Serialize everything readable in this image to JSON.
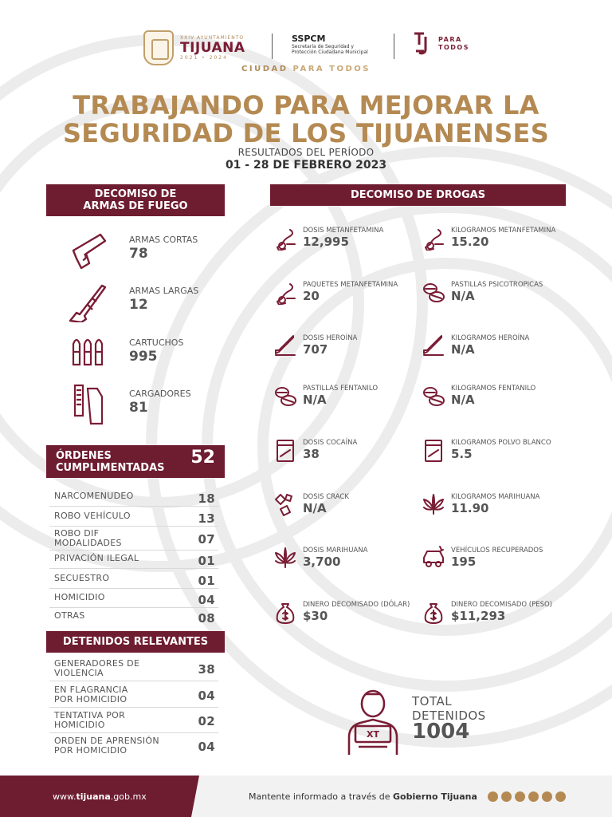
{
  "header": {
    "municipio_small": "XXIV AYUNTAMIENTO",
    "municipio_name": "TIJUANA",
    "municipio_years": "2021 • 2024",
    "sspcm_title": "SSPCM",
    "sspcm_line1": "Secretaría de Seguridad y",
    "sspcm_line2": "Protección Ciudadana Municipal",
    "tj_para": "PARA",
    "tj_todos": "TODOS",
    "ciudad": "CIUDAD",
    "para_todos": "PARA TODOS"
  },
  "title_line1": "TRABAJANDO PARA MEJORAR LA",
  "title_line2": "SEGURIDAD DE LOS TIJUANENSES",
  "subtitle": "RESULTADOS DEL PERÍODO",
  "period": "01 - 28 DE FEBRERO 2023",
  "armas": {
    "banner_line1": "DECOMISO DE",
    "banner_line2": "ARMAS DE FUEGO",
    "items": [
      {
        "label": "ARMAS CORTAS",
        "value": "78",
        "icon": "pistol-icon"
      },
      {
        "label": "ARMAS LARGAS",
        "value": "12",
        "icon": "rifle-icon"
      },
      {
        "label": "CARTUCHOS",
        "value": "995",
        "icon": "bullets-icon"
      },
      {
        "label": "CARGADORES",
        "value": "81",
        "icon": "magazine-icon"
      }
    ]
  },
  "drogas": {
    "banner": "DECOMISO DE DROGAS",
    "items": [
      {
        "label": "DOSIS METANFETAMINA",
        "value": "12,995",
        "icon": "pipe-icon"
      },
      {
        "label": "KILOGRAMOS METANFETAMINA",
        "value": "15.20",
        "icon": "pipe-icon"
      },
      {
        "label": "PAQUETES METANFETAMINA",
        "value": "20",
        "icon": "pipe-icon"
      },
      {
        "label": "PASTILLAS PSICOTROPICAS",
        "value": "N/A",
        "icon": "pills-icon"
      },
      {
        "label": "DOSIS HEROÍNA",
        "value": "707",
        "icon": "syringe-icon"
      },
      {
        "label": "KILOGRAMOS HEROÍNA",
        "value": "N/A",
        "icon": "syringe-icon"
      },
      {
        "label": "PASTILLAS FENTANILO",
        "value": "N/A",
        "icon": "pills-icon"
      },
      {
        "label": "KILOGRAMOS FENTANILO",
        "value": "N/A",
        "icon": "pills-icon"
      },
      {
        "label": "DOSIS COCAÍNA",
        "value": "38",
        "icon": "bag-icon"
      },
      {
        "label": "KILOGRAMOS POLVO BLANCO",
        "value": "5.5",
        "icon": "bag-icon"
      },
      {
        "label": "DOSIS CRACK",
        "value": "N/A",
        "icon": "crack-icon"
      },
      {
        "label": "KILOGRAMOS MARIHUANA",
        "value": "11.90",
        "icon": "leaf-icon"
      },
      {
        "label": "DOSIS MARIHUANA",
        "value": "3,700",
        "icon": "leaf-icon"
      },
      {
        "label": "VEHÍCULOS RECUPERADOS",
        "value": "195",
        "icon": "car-icon"
      },
      {
        "label": "DINERO DECOMISADO (DÓLAR)",
        "value": "$30",
        "icon": "money-bag-icon"
      },
      {
        "label": "DINERO DECOMISADO (PESO)",
        "value": "$11,293",
        "icon": "money-bag-icon"
      }
    ]
  },
  "ordenes": {
    "banner_line1": "ÓRDENES",
    "banner_line2": "CUMPLIMENTADAS",
    "count": "52",
    "rows": [
      {
        "l1": "NARCOMENUDEO",
        "l2": "",
        "value": "18"
      },
      {
        "l1": "ROBO VEHÍCULO",
        "l2": "",
        "value": "13"
      },
      {
        "l1": "ROBO DIF",
        "l2": "MODALIDADES",
        "value": "07"
      },
      {
        "l1": "PRIVACIÓN ILEGAL",
        "l2": "",
        "value": "01"
      },
      {
        "l1": "SECUESTRO",
        "l2": "",
        "value": "01"
      },
      {
        "l1": "HOMICIDIO",
        "l2": "",
        "value": "04"
      },
      {
        "l1": "OTRAS",
        "l2": "",
        "value": "08"
      }
    ]
  },
  "detenidos": {
    "banner": "DETENIDOS RELEVANTES",
    "rows": [
      {
        "l1": "GENERADORES DE",
        "l2": "VIOLENCIA",
        "value": "38"
      },
      {
        "l1": "EN FLAGRANCIA",
        "l2": "POR HOMICIDIO",
        "value": "04"
      },
      {
        "l1": "TENTATIVA POR",
        "l2": "HOMICIDIO",
        "value": "02"
      },
      {
        "l1": "ORDEN DE APRENSIÓN",
        "l2": "POR HOMICIDIO",
        "value": "04"
      }
    ]
  },
  "total": {
    "line1": "TOTAL",
    "line2": "DETENIDOS",
    "value": "1004",
    "plate": "XT"
  },
  "footer": {
    "url_pre": "www.",
    "url_bold": "tijuana",
    "url_post": ".gob.mx",
    "info": "Mantente informado a través de ",
    "info_bold": "Gobierno Tijuana"
  },
  "colors": {
    "maroon": "#6e1c30",
    "gold": "#b48a52",
    "text": "#555555"
  }
}
